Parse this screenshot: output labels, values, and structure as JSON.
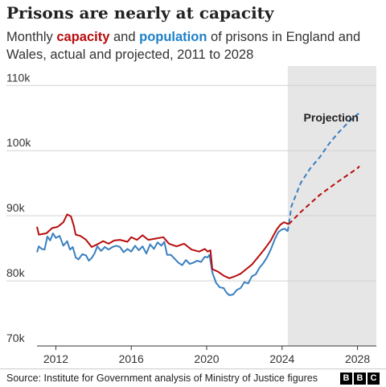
{
  "header": {
    "title": "Prisons are nearly at capacity",
    "subtitle_parts": [
      "Monthly ",
      "capacity",
      " and ",
      "population",
      " of prisons in England and Wales, actual and projected, 2011 to 2028"
    ]
  },
  "footer": {
    "source": "Source: Institute for Government analysis of Ministry of Justice figures",
    "logo_letters": [
      "B",
      "B",
      "C"
    ]
  },
  "colors": {
    "capacity": "#b80d0d",
    "population": "#3a7fc0",
    "projection_shade": "#e6e6e6",
    "grid": "#d2d2d2"
  },
  "chart_data": {
    "type": "line",
    "title": "Prisons are nearly at capacity",
    "xlabel": "",
    "ylabel": "",
    "xlim": [
      2011.0,
      2029.0
    ],
    "ylim": [
      70000,
      113000
    ],
    "y_ticks": [
      70000,
      80000,
      90000,
      100000,
      110000
    ],
    "y_tick_labels": [
      "70k",
      "80k",
      "90k",
      "100k",
      "110k"
    ],
    "x_ticks": [
      2012,
      2016,
      2020,
      2024,
      2028
    ],
    "x_tick_labels": [
      "2012",
      "2016",
      "2020",
      "2024",
      "2028"
    ],
    "grid": true,
    "projection_start": 2024.3,
    "projection_label": "Projection",
    "series": [
      {
        "name": "capacity",
        "color": "#b80d0d",
        "actual": [
          [
            2011.0,
            88300
          ],
          [
            2011.1,
            87100
          ],
          [
            2011.5,
            87300
          ],
          [
            2011.8,
            88100
          ],
          [
            2012.1,
            88300
          ],
          [
            2012.4,
            89000
          ],
          [
            2012.6,
            90200
          ],
          [
            2012.8,
            89900
          ],
          [
            2012.95,
            88500
          ],
          [
            2013.05,
            87100
          ],
          [
            2013.3,
            86900
          ],
          [
            2013.6,
            86300
          ],
          [
            2013.9,
            85200
          ],
          [
            2014.2,
            85600
          ],
          [
            2014.5,
            86100
          ],
          [
            2014.8,
            85700
          ],
          [
            2015.1,
            86200
          ],
          [
            2015.4,
            86300
          ],
          [
            2015.8,
            86000
          ],
          [
            2016.0,
            86700
          ],
          [
            2016.3,
            86300
          ],
          [
            2016.6,
            87000
          ],
          [
            2016.9,
            86300
          ],
          [
            2017.3,
            86500
          ],
          [
            2017.7,
            86700
          ],
          [
            2018.0,
            85700
          ],
          [
            2018.4,
            85300
          ],
          [
            2018.8,
            85700
          ],
          [
            2019.2,
            84800
          ],
          [
            2019.6,
            84500
          ],
          [
            2019.9,
            84900
          ],
          [
            2020.05,
            84500
          ],
          [
            2020.2,
            84700
          ],
          [
            2020.3,
            81800
          ],
          [
            2020.6,
            81400
          ],
          [
            2020.9,
            80800
          ],
          [
            2021.2,
            80400
          ],
          [
            2021.5,
            80700
          ],
          [
            2021.8,
            81100
          ],
          [
            2022.1,
            81800
          ],
          [
            2022.4,
            82500
          ],
          [
            2022.8,
            83900
          ],
          [
            2023.1,
            85000
          ],
          [
            2023.4,
            86200
          ],
          [
            2023.7,
            87800
          ],
          [
            2023.9,
            88600
          ],
          [
            2024.1,
            89000
          ],
          [
            2024.35,
            88700
          ]
        ],
        "projected": [
          [
            2024.35,
            88700
          ],
          [
            2025.0,
            90600
          ],
          [
            2026.0,
            93200
          ],
          [
            2027.0,
            95300
          ],
          [
            2028.0,
            97300
          ],
          [
            2028.1,
            97600
          ]
        ]
      },
      {
        "name": "population",
        "color": "#3a7fc0",
        "actual": [
          [
            2011.0,
            84400
          ],
          [
            2011.1,
            85300
          ],
          [
            2011.25,
            84900
          ],
          [
            2011.4,
            84800
          ],
          [
            2011.55,
            86800
          ],
          [
            2011.7,
            86200
          ],
          [
            2011.85,
            87300
          ],
          [
            2012.0,
            86600
          ],
          [
            2012.2,
            86900
          ],
          [
            2012.4,
            85400
          ],
          [
            2012.6,
            86100
          ],
          [
            2012.75,
            84800
          ],
          [
            2012.9,
            85200
          ],
          [
            2013.05,
            83600
          ],
          [
            2013.2,
            83300
          ],
          [
            2013.4,
            84100
          ],
          [
            2013.6,
            83900
          ],
          [
            2013.75,
            83100
          ],
          [
            2013.9,
            83500
          ],
          [
            2014.05,
            84200
          ],
          [
            2014.2,
            85300
          ],
          [
            2014.4,
            84600
          ],
          [
            2014.6,
            85200
          ],
          [
            2014.8,
            84800
          ],
          [
            2015.0,
            85200
          ],
          [
            2015.2,
            85400
          ],
          [
            2015.4,
            85200
          ],
          [
            2015.6,
            84400
          ],
          [
            2015.8,
            84900
          ],
          [
            2016.0,
            84500
          ],
          [
            2016.2,
            85400
          ],
          [
            2016.4,
            84700
          ],
          [
            2016.6,
            85300
          ],
          [
            2016.8,
            84200
          ],
          [
            2017.0,
            85600
          ],
          [
            2017.2,
            84900
          ],
          [
            2017.4,
            85900
          ],
          [
            2017.6,
            85400
          ],
          [
            2017.75,
            86000
          ],
          [
            2017.9,
            84000
          ],
          [
            2018.1,
            84000
          ],
          [
            2018.3,
            83400
          ],
          [
            2018.5,
            82800
          ],
          [
            2018.7,
            82400
          ],
          [
            2018.9,
            83200
          ],
          [
            2019.1,
            82600
          ],
          [
            2019.3,
            82800
          ],
          [
            2019.5,
            83100
          ],
          [
            2019.7,
            82900
          ],
          [
            2019.9,
            83700
          ],
          [
            2020.05,
            83600
          ],
          [
            2020.15,
            84000
          ],
          [
            2020.3,
            81300
          ],
          [
            2020.5,
            79700
          ],
          [
            2020.7,
            79000
          ],
          [
            2020.9,
            78900
          ],
          [
            2021.05,
            78200
          ],
          [
            2021.2,
            77800
          ],
          [
            2021.4,
            77900
          ],
          [
            2021.6,
            78600
          ],
          [
            2021.8,
            78900
          ],
          [
            2022.0,
            79800
          ],
          [
            2022.2,
            79600
          ],
          [
            2022.4,
            80700
          ],
          [
            2022.6,
            81000
          ],
          [
            2022.8,
            82000
          ],
          [
            2023.0,
            82700
          ],
          [
            2023.2,
            83600
          ],
          [
            2023.4,
            84800
          ],
          [
            2023.6,
            86300
          ],
          [
            2023.8,
            87500
          ],
          [
            2024.0,
            87900
          ],
          [
            2024.15,
            88000
          ],
          [
            2024.3,
            87600
          ]
        ],
        "projected": [
          [
            2024.3,
            87600
          ],
          [
            2024.5,
            91500
          ],
          [
            2025.0,
            95100
          ],
          [
            2025.5,
            97300
          ],
          [
            2026.0,
            99000
          ],
          [
            2026.5,
            101100
          ],
          [
            2027.0,
            102800
          ],
          [
            2027.5,
            104300
          ],
          [
            2028.0,
            105600
          ],
          [
            2028.2,
            105800
          ]
        ]
      }
    ]
  }
}
